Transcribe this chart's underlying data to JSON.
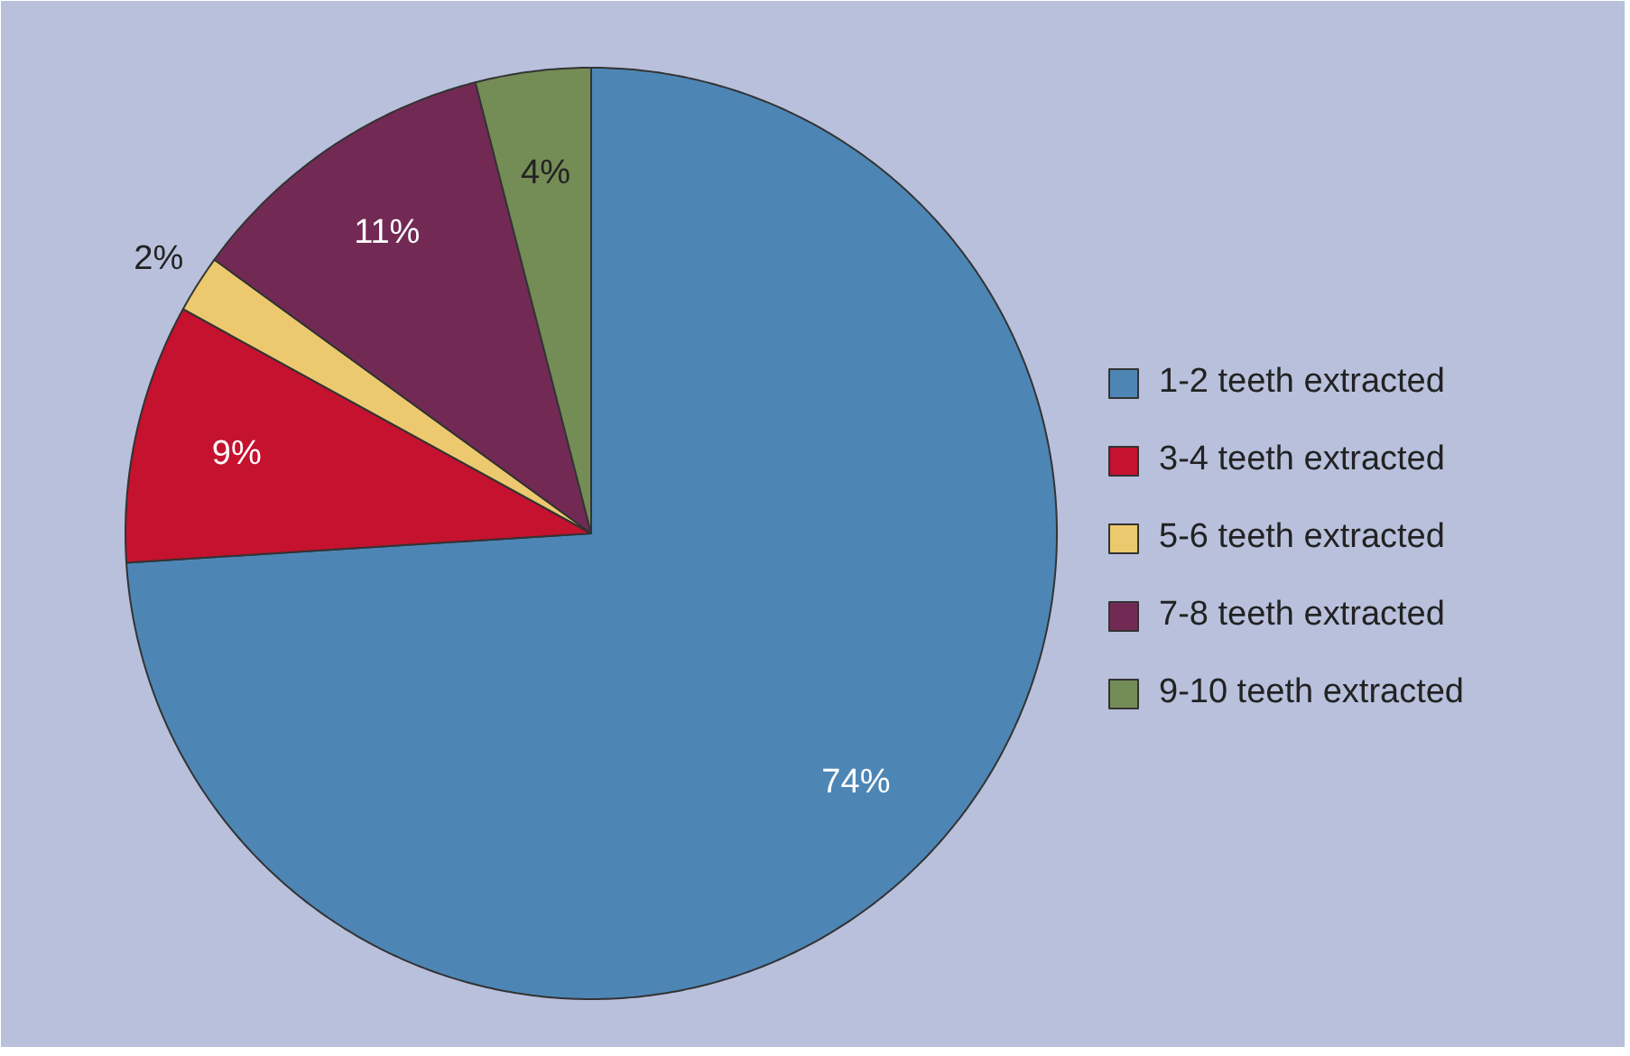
{
  "chart_data": {
    "type": "pie",
    "categories": [
      "1-2 teeth extracted",
      "3-4 teeth extracted",
      "5-6 teeth extracted",
      "7-8 teeth extracted",
      "9-10 teeth extracted"
    ],
    "values": [
      74,
      9,
      2,
      11,
      4
    ],
    "colors": [
      "#4d86b5",
      "#c4122f",
      "#ecc96e",
      "#722a55",
      "#748c56"
    ],
    "value_labels": [
      "74%",
      "9%",
      "2%",
      "11%",
      "4%"
    ],
    "legend": "right"
  }
}
